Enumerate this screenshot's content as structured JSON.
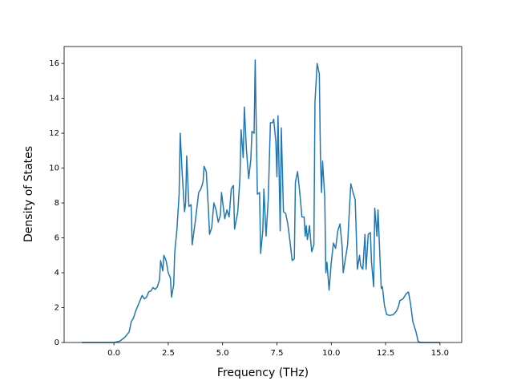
{
  "chart_data": {
    "type": "line",
    "xlabel": "Frequency (THz)",
    "ylabel": "Density of States",
    "color": "#1f77b4",
    "x": [
      -1.47,
      0.0,
      0.2,
      0.3,
      0.5,
      0.7,
      0.8,
      0.9,
      1.0,
      1.2,
      1.3,
      1.4,
      1.5,
      1.6,
      1.7,
      1.8,
      1.9,
      2.0,
      2.1,
      2.15,
      2.25,
      2.3,
      2.4,
      2.5,
      2.6,
      2.65,
      2.75,
      2.8,
      2.9,
      3.0,
      3.05,
      3.15,
      3.25,
      3.3,
      3.35,
      3.45,
      3.55,
      3.6,
      3.75,
      3.9,
      4.0,
      4.1,
      4.15,
      4.25,
      4.35,
      4.4,
      4.5,
      4.6,
      4.7,
      4.8,
      4.9,
      4.95,
      5.1,
      5.2,
      5.3,
      5.4,
      5.5,
      5.55,
      5.7,
      5.8,
      5.85,
      5.95,
      6.0,
      6.1,
      6.2,
      6.3,
      6.35,
      6.45,
      6.5,
      6.6,
      6.7,
      6.75,
      6.85,
      6.9,
      7.0,
      7.1,
      7.2,
      7.3,
      7.35,
      7.45,
      7.5,
      7.55,
      7.65,
      7.7,
      7.8,
      7.9,
      8.0,
      8.1,
      8.2,
      8.3,
      8.35,
      8.45,
      8.55,
      8.65,
      8.75,
      8.8,
      8.85,
      8.9,
      9.0,
      9.05,
      9.1,
      9.2,
      9.25,
      9.35,
      9.45,
      9.5,
      9.55,
      9.6,
      9.7,
      9.75,
      9.8,
      9.9,
      10.0,
      10.1,
      10.2,
      10.3,
      10.4,
      10.5,
      10.55,
      10.65,
      10.75,
      10.85,
      10.9,
      11.0,
      11.1,
      11.2,
      11.3,
      11.35,
      11.45,
      11.55,
      11.6,
      11.7,
      11.8,
      11.85,
      11.95,
      12.0,
      12.1,
      12.15,
      12.25,
      12.3,
      12.35,
      12.45,
      12.55,
      12.7,
      12.85,
      13.0,
      13.1,
      13.15,
      13.3,
      13.45,
      13.55,
      13.65,
      13.75,
      13.9,
      14.0,
      14.1,
      15.0
    ],
    "values": [
      0,
      0,
      0.05,
      0.1,
      0.3,
      0.6,
      1.2,
      1.4,
      1.8,
      2.4,
      2.7,
      2.5,
      2.6,
      2.9,
      2.95,
      3.15,
      3.05,
      3.2,
      3.6,
      4.7,
      4.1,
      5.0,
      4.7,
      4.0,
      3.7,
      2.6,
      3.3,
      5.2,
      6.5,
      8.5,
      12.0,
      9.5,
      7.5,
      8.0,
      10.7,
      7.8,
      7.9,
      5.6,
      7.0,
      8.6,
      8.8,
      9.2,
      10.1,
      9.8,
      7.6,
      6.2,
      6.6,
      8.0,
      7.6,
      6.9,
      7.3,
      8.6,
      7.1,
      7.6,
      7.2,
      8.8,
      9.0,
      6.5,
      7.5,
      9.5,
      12.2,
      10.6,
      13.5,
      11.0,
      9.4,
      10.5,
      12.1,
      12.0,
      16.2,
      8.5,
      8.6,
      5.1,
      6.4,
      8.8,
      6.1,
      8.2,
      12.6,
      12.6,
      12.8,
      11.5,
      9.5,
      13.0,
      6.4,
      12.3,
      7.5,
      7.4,
      6.8,
      5.8,
      4.7,
      4.8,
      9.2,
      9.8,
      8.6,
      7.2,
      7.2,
      6.1,
      6.7,
      5.9,
      6.7,
      5.9,
      5.2,
      5.6,
      13.8,
      16.0,
      15.4,
      10.8,
      8.6,
      10.4,
      8.3,
      4.0,
      4.6,
      3.0,
      4.6,
      5.7,
      5.4,
      6.4,
      6.8,
      5.5,
      4.0,
      4.8,
      5.6,
      8.0,
      9.1,
      8.6,
      8.2,
      4.2,
      5.0,
      4.4,
      4.2,
      6.2,
      4.2,
      6.2,
      6.3,
      4.6,
      3.2,
      7.7,
      6.1,
      7.6,
      4.5,
      3.1,
      3.2,
      2.1,
      1.6,
      1.55,
      1.6,
      1.8,
      2.1,
      2.4,
      2.5,
      2.8,
      2.9,
      2.2,
      1.2,
      0.6,
      0.05,
      0,
      0
    ],
    "xlim": [
      -2.29,
      16.0
    ],
    "ylim": [
      0,
      16.97
    ],
    "xticks": [
      {
        "value": 0,
        "label": "0.0"
      },
      {
        "value": 2.5,
        "label": "2.5"
      },
      {
        "value": 5,
        "label": "5.0"
      },
      {
        "value": 7.5,
        "label": "7.5"
      },
      {
        "value": 10,
        "label": "10.0"
      },
      {
        "value": 12.5,
        "label": "12.5"
      },
      {
        "value": 15,
        "label": "15.0"
      }
    ],
    "yticks": [
      0,
      2,
      4,
      6,
      8,
      10,
      12,
      14,
      16
    ]
  }
}
